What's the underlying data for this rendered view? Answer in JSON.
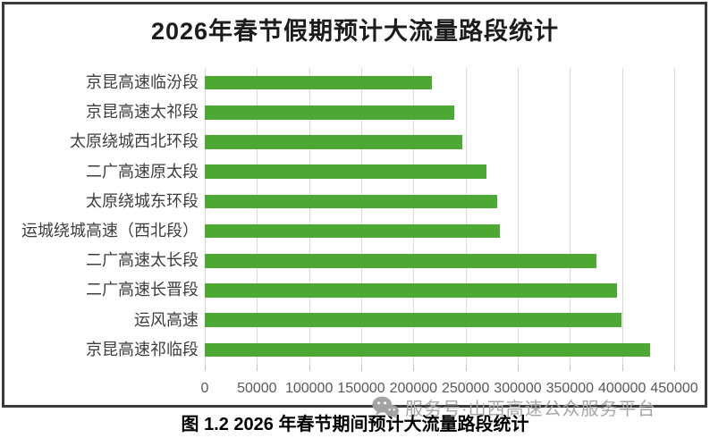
{
  "chart_data": {
    "type": "bar",
    "orientation": "horizontal",
    "title": "2026年春节假期预计大流量路段统计",
    "categories": [
      "京昆高速临汾段",
      "京昆高速太祁段",
      "太原绕城西北环段",
      "二广高速原太段",
      "太原绕城东环段",
      "运城绕城高速（西北段）",
      "二广高速太长段",
      "二广高速长晋段",
      "运风高速",
      "京昆高速祁临段"
    ],
    "values": [
      218000,
      239000,
      247000,
      270000,
      280000,
      283000,
      375000,
      395000,
      399000,
      427000
    ],
    "xlabel": "",
    "ylabel": "",
    "xlim": [
      0,
      450000
    ],
    "xticks": [
      "0",
      "50000",
      "100000",
      "150000",
      "200000",
      "250000",
      "300000",
      "350000",
      "400000",
      "450000"
    ],
    "grid": "vertical-only",
    "legend": "none",
    "bar_color": "#4CA832",
    "gridline_color": "#d9d9d9"
  },
  "caption": "图 1.2 2026 年春节期间预计大流量路段统计",
  "watermark": {
    "icon": "wechat-icon",
    "text": "服务号·山西高速公众服务平台",
    "color": "#a6a6a6"
  }
}
